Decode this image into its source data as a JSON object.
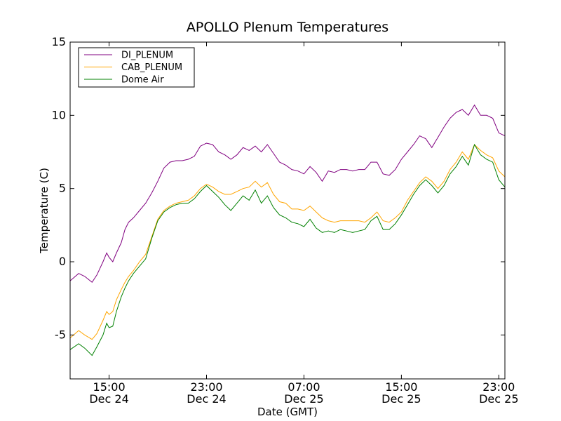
{
  "chart_data": {
    "type": "line",
    "title": "APOLLO Plenum Temperatures",
    "xlabel": "Date (GMT)",
    "ylabel": "Temperature (C)",
    "x_unit": "hours since Dec 24 00:00 GMT",
    "xlim": [
      11.8,
      47.5
    ],
    "ylim": [
      -8,
      15
    ],
    "yticks": [
      15,
      10,
      5,
      0,
      -5
    ],
    "ytick_labels": [
      "15",
      "10",
      "5",
      "0",
      "-5"
    ],
    "xticks": [
      {
        "x": 15,
        "time": "15:00",
        "date": "Dec 24"
      },
      {
        "x": 23,
        "time": "23:00",
        "date": "Dec 24"
      },
      {
        "x": 31,
        "time": "07:00",
        "date": "Dec 25"
      },
      {
        "x": 39,
        "time": "15:00",
        "date": "Dec 25"
      },
      {
        "x": 47,
        "time": "23:00",
        "date": "Dec 25"
      }
    ],
    "legend_position": "top-left",
    "series": [
      {
        "name": "DI_PLENUM",
        "color": "#800080",
        "x": [
          11.8,
          12.5,
          13.0,
          13.6,
          14.0,
          14.5,
          14.8,
          15.0,
          15.3,
          15.6,
          16.0,
          16.3,
          16.6,
          17.0,
          17.5,
          18.0,
          18.5,
          19.0,
          19.5,
          20.0,
          20.5,
          21.0,
          21.5,
          22.0,
          22.5,
          23.0,
          23.5,
          24.0,
          24.5,
          25.0,
          25.5,
          26.0,
          26.5,
          27.0,
          27.5,
          28.0,
          28.5,
          29.0,
          29.5,
          30.0,
          30.5,
          31.0,
          31.5,
          32.0,
          32.5,
          33.0,
          33.5,
          34.0,
          34.5,
          35.0,
          35.5,
          36.0,
          36.5,
          37.0,
          37.5,
          38.0,
          38.5,
          39.0,
          39.5,
          40.0,
          40.5,
          41.0,
          41.5,
          42.0,
          42.5,
          43.0,
          43.5,
          44.0,
          44.5,
          45.0,
          45.5,
          46.0,
          46.5,
          47.0,
          47.5
        ],
        "y": [
          -1.3,
          -0.8,
          -1.0,
          -1.4,
          -0.9,
          0.0,
          0.6,
          0.3,
          0.0,
          0.6,
          1.3,
          2.2,
          2.7,
          3.0,
          3.5,
          4.0,
          4.7,
          5.5,
          6.4,
          6.8,
          6.9,
          6.9,
          7.0,
          7.2,
          7.9,
          8.1,
          8.0,
          7.5,
          7.3,
          7.0,
          7.3,
          7.8,
          7.6,
          7.9,
          7.5,
          8.0,
          7.4,
          6.8,
          6.6,
          6.3,
          6.2,
          6.0,
          6.5,
          6.1,
          5.5,
          6.2,
          6.1,
          6.3,
          6.3,
          6.2,
          6.3,
          6.3,
          6.8,
          6.8,
          6.0,
          5.9,
          6.3,
          7.0,
          7.5,
          8.0,
          8.6,
          8.4,
          7.8,
          8.5,
          9.2,
          9.8,
          10.2,
          10.4,
          10.0,
          10.7,
          10.0,
          10.0,
          9.8,
          8.8,
          8.6
        ]
      },
      {
        "name": "CAB_PLENUM",
        "color": "#ffa500",
        "x": [
          11.8,
          12.5,
          13.0,
          13.6,
          14.0,
          14.5,
          14.8,
          15.0,
          15.3,
          15.6,
          16.0,
          16.3,
          16.6,
          17.0,
          17.5,
          18.0,
          18.5,
          19.0,
          19.5,
          20.0,
          20.5,
          21.0,
          21.5,
          22.0,
          22.5,
          23.0,
          23.5,
          24.0,
          24.5,
          25.0,
          25.5,
          26.0,
          26.5,
          27.0,
          27.5,
          28.0,
          28.5,
          29.0,
          29.5,
          30.0,
          30.5,
          31.0,
          31.5,
          32.0,
          32.5,
          33.0,
          33.5,
          34.0,
          34.5,
          35.0,
          35.5,
          36.0,
          36.5,
          37.0,
          37.5,
          38.0,
          38.5,
          39.0,
          39.5,
          40.0,
          40.5,
          41.0,
          41.5,
          42.0,
          42.5,
          43.0,
          43.5,
          44.0,
          44.5,
          45.0,
          45.5,
          46.0,
          46.5,
          47.0,
          47.5
        ],
        "y": [
          -5.2,
          -4.7,
          -5.0,
          -5.3,
          -4.9,
          -4.0,
          -3.4,
          -3.6,
          -3.4,
          -2.6,
          -1.9,
          -1.4,
          -1.0,
          -0.6,
          0.0,
          0.5,
          1.7,
          2.9,
          3.5,
          3.8,
          4.0,
          4.1,
          4.2,
          4.5,
          5.0,
          5.3,
          5.1,
          4.8,
          4.6,
          4.6,
          4.8,
          5.0,
          5.1,
          5.5,
          5.1,
          5.4,
          4.6,
          4.1,
          4.0,
          3.6,
          3.6,
          3.5,
          3.8,
          3.4,
          3.0,
          2.8,
          2.7,
          2.8,
          2.8,
          2.8,
          2.8,
          2.7,
          3.0,
          3.4,
          2.8,
          2.7,
          3.0,
          3.4,
          4.2,
          4.8,
          5.4,
          5.8,
          5.5,
          5.0,
          5.5,
          6.3,
          6.8,
          7.5,
          7.0,
          8.0,
          7.6,
          7.3,
          7.1,
          6.2,
          5.8
        ]
      },
      {
        "name": "Dome Air",
        "color": "#008000",
        "x": [
          11.8,
          12.5,
          13.0,
          13.6,
          14.0,
          14.5,
          14.8,
          15.0,
          15.3,
          15.6,
          16.0,
          16.3,
          16.6,
          17.0,
          17.5,
          18.0,
          18.5,
          19.0,
          19.5,
          20.0,
          20.5,
          21.0,
          21.5,
          22.0,
          22.5,
          23.0,
          23.5,
          24.0,
          24.5,
          25.0,
          25.5,
          26.0,
          26.5,
          27.0,
          27.5,
          28.0,
          28.5,
          29.0,
          29.5,
          30.0,
          30.5,
          31.0,
          31.5,
          32.0,
          32.5,
          33.0,
          33.5,
          34.0,
          34.5,
          35.0,
          35.5,
          36.0,
          36.5,
          37.0,
          37.5,
          38.0,
          38.5,
          39.0,
          39.5,
          40.0,
          40.5,
          41.0,
          41.5,
          42.0,
          42.5,
          43.0,
          43.5,
          44.0,
          44.5,
          45.0,
          45.5,
          46.0,
          46.5,
          47.0,
          47.5
        ],
        "y": [
          -6.0,
          -5.6,
          -5.9,
          -6.4,
          -5.8,
          -5.0,
          -4.2,
          -4.5,
          -4.4,
          -3.4,
          -2.4,
          -1.8,
          -1.3,
          -0.8,
          -0.3,
          0.2,
          1.6,
          2.8,
          3.4,
          3.7,
          3.9,
          4.0,
          4.0,
          4.3,
          4.8,
          5.2,
          4.8,
          4.4,
          3.9,
          3.5,
          4.0,
          4.5,
          4.2,
          4.9,
          4.0,
          4.5,
          3.7,
          3.2,
          3.0,
          2.7,
          2.6,
          2.4,
          2.9,
          2.3,
          2.0,
          2.1,
          2.0,
          2.2,
          2.1,
          2.0,
          2.1,
          2.2,
          2.8,
          3.1,
          2.2,
          2.2,
          2.6,
          3.2,
          3.9,
          4.6,
          5.2,
          5.6,
          5.2,
          4.7,
          5.2,
          6.0,
          6.5,
          7.2,
          6.6,
          8.0,
          7.3,
          7.0,
          6.8,
          5.6,
          5.1
        ]
      }
    ]
  }
}
